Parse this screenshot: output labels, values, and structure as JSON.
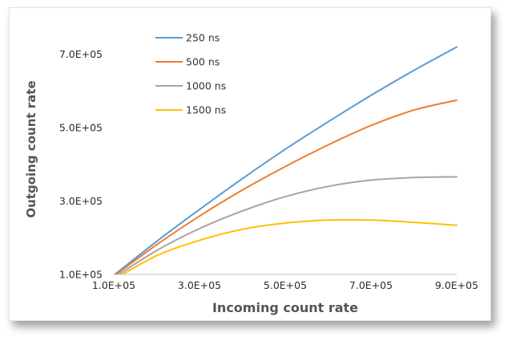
{
  "chart_data": {
    "type": "line",
    "xlabel": "Incoming count rate",
    "ylabel": "Outgoing count rate",
    "x_ticks": [
      "1.0E+05",
      "3.0E+05",
      "5.0E+05",
      "7.0E+05",
      "9.0E+05"
    ],
    "y_ticks": [
      "1.0E+05",
      "3.0E+05",
      "5.0E+05",
      "7.0E+05"
    ],
    "xlim": [
      100000,
      900000
    ],
    "ylim": [
      100000,
      800000
    ],
    "grid": false,
    "legend_position": "top-left",
    "x": [
      100000,
      200000,
      300000,
      400000,
      500000,
      600000,
      700000,
      800000,
      900000
    ],
    "series": [
      {
        "name": "250 ns",
        "color": "#5B9BD5",
        "values": [
          97500,
          190000,
          277000,
          361000,
          441000,
          516000,
          588000,
          656000,
          720000
        ]
      },
      {
        "name": "500 ns",
        "color": "#ED7D31",
        "values": [
          95000,
          181000,
          259000,
          330000,
          394000,
          453000,
          506000,
          548000,
          575000
        ]
      },
      {
        "name": "1000 ns",
        "color": "#A5A5A5",
        "values": [
          90500,
          165000,
          225000,
          273000,
          312000,
          340000,
          357000,
          364000,
          366000
        ]
      },
      {
        "name": "1500 ns",
        "color": "#FFC000",
        "values": [
          86000,
          151000,
          193000,
          223000,
          240000,
          248000,
          248000,
          242000,
          234000
        ]
      }
    ]
  }
}
